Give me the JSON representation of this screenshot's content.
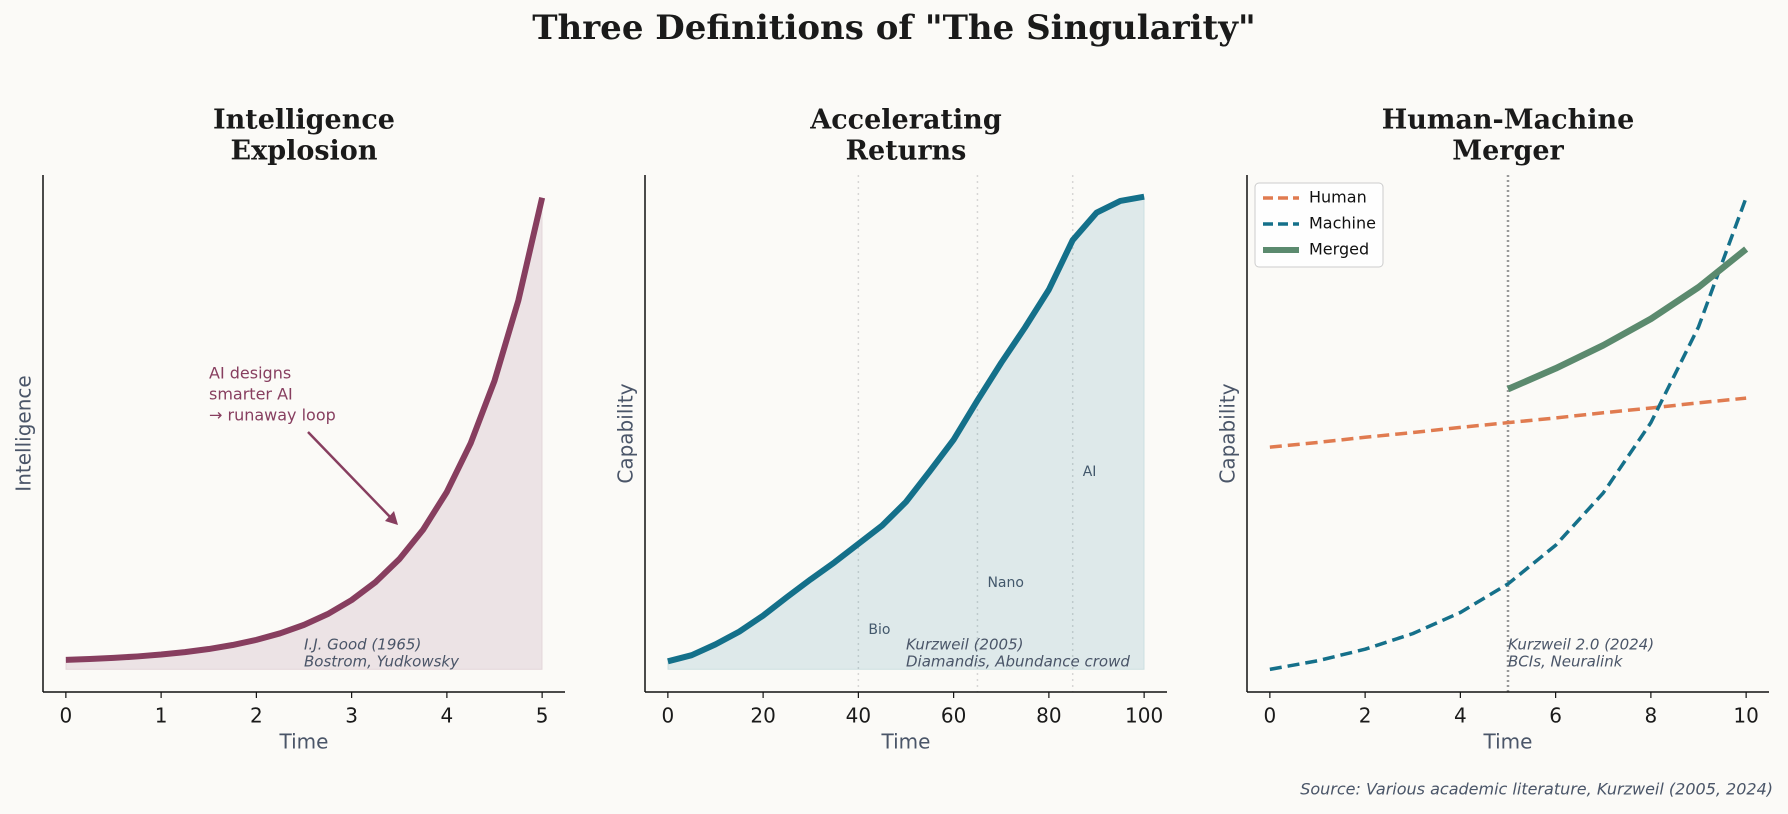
{
  "title": "Three Definitions of \"The Singularity\"",
  "source": "Source: Various academic literature, Kurzweil (2005, 2024)",
  "chart_data": [
    {
      "type": "line",
      "title": [
        "Intelligence",
        "Explosion"
      ],
      "x_label": "Time",
      "y_label": "Intelligence",
      "x": [
        0,
        0.25,
        0.5,
        0.75,
        1,
        1.25,
        1.5,
        1.75,
        2,
        2.25,
        2.5,
        2.75,
        3,
        3.25,
        3.5,
        3.75,
        4,
        4.25,
        4.5,
        4.75,
        5
      ],
      "series": [
        {
          "name": "Intelligence",
          "color": "#873e5f",
          "style": "solid",
          "fill": true,
          "values": [
            2.0,
            2.19,
            2.43,
            2.74,
            3.14,
            3.66,
            4.31,
            5.16,
            6.25,
            7.64,
            9.43,
            11.73,
            14.69,
            18.48,
            23.35,
            29.6,
            37.63,
            47.95,
            61.18,
            78.18,
            100
          ]
        }
      ],
      "xlim": [
        -0.24,
        5.24
      ],
      "ylim": [
        -4.8,
        104.8
      ],
      "xticks": [
        0,
        1,
        2,
        3,
        4,
        5
      ],
      "annotation": [
        "AI designs",
        "smarter AI",
        "→ runaway loop"
      ],
      "citation": [
        "I.J. Good (1965)",
        "Bostrom, Yudkowsky"
      ]
    },
    {
      "type": "line",
      "title": [
        "Accelerating",
        "Returns"
      ],
      "x_label": "Time",
      "y_label": "Capability",
      "x": [
        0,
        5,
        10,
        15,
        20,
        25,
        30,
        35,
        40,
        45,
        50,
        55,
        60,
        65,
        70,
        75,
        80,
        85,
        90,
        95,
        100
      ],
      "series": [
        {
          "name": "Capability",
          "color": "#14708a",
          "style": "solid",
          "fill": true,
          "values": [
            1.7,
            3,
            5.3,
            8,
            11.4,
            15.3,
            19.1,
            22.7,
            26.6,
            30.5,
            35.5,
            42,
            48.7,
            57,
            65,
            72.5,
            80.5,
            91,
            96.8,
            99.3,
            100.2
          ]
        }
      ],
      "xlim": [
        -4.8,
        104.8
      ],
      "ylim": [
        -4.8,
        104.8
      ],
      "xticks": [
        0,
        20,
        40,
        60,
        80,
        100
      ],
      "milestones": [
        {
          "label": "Bio",
          "x": 40
        },
        {
          "label": "Nano",
          "x": 65
        },
        {
          "label": "AI",
          "x": 85
        }
      ],
      "citation": [
        "Kurzweil (2005)",
        "Diamandis, Abundance crowd"
      ]
    },
    {
      "type": "line",
      "title": [
        "Human-Machine",
        "Merger"
      ],
      "x_label": "Time",
      "y_label": "Capability",
      "x": [
        0,
        1,
        2,
        3,
        4,
        5,
        6,
        7,
        8,
        9,
        10
      ],
      "series": [
        {
          "name": "Human",
          "color": "#e07b50",
          "style": "dashed",
          "values": [
            47.1,
            48.1,
            49.2,
            50.2,
            51.3,
            52.3,
            53.3,
            54.4,
            55.4,
            56.5,
            57.5
          ]
        },
        {
          "name": "Machine",
          "color": "#15708a",
          "style": "dashed",
          "values": [
            0,
            1.81,
            4.27,
            7.58,
            12.06,
            18.11,
            26.3,
            37.4,
            52.3,
            72.6,
            100
          ]
        },
        {
          "name": "Merged",
          "color": "#5b8a6e",
          "style": "thick",
          "values": [
            null,
            null,
            null,
            null,
            null,
            59.4,
            63.8,
            68.7,
            74.3,
            81.0,
            89.1
          ]
        }
      ],
      "xlim": [
        -0.48,
        10.48
      ],
      "ylim": [
        -4.8,
        104.8
      ],
      "xticks": [
        0,
        2,
        4,
        6,
        8,
        10
      ],
      "vline": 5,
      "legend": "upper left",
      "citation": [
        "Kurzweil 2.0 (2024)",
        "BCIs, Neuralink"
      ]
    }
  ]
}
